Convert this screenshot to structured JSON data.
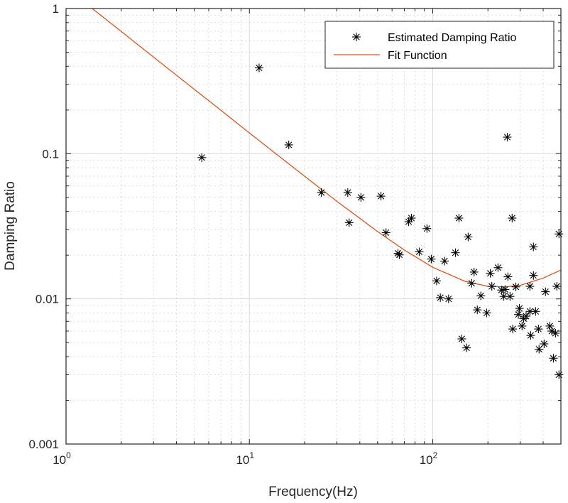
{
  "chart_data": {
    "type": "scatter",
    "xlabel": "Frequency(Hz)",
    "ylabel": "Damping Ratio",
    "xscale": "log",
    "yscale": "log",
    "xlim": [
      1,
      500
    ],
    "ylim": [
      0.001,
      1
    ],
    "xticks": [
      {
        "base": "10",
        "exp": "0",
        "value": 1
      },
      {
        "base": "10",
        "exp": "1",
        "value": 10
      },
      {
        "base": "10",
        "exp": "2",
        "value": 100
      }
    ],
    "yticks": [
      {
        "label": "1",
        "value": 1
      },
      {
        "label": "0.1",
        "value": 0.1
      },
      {
        "label": "0.01",
        "value": 0.01
      },
      {
        "label": "0.001",
        "value": 0.001
      }
    ],
    "grid": true,
    "legend_position": "top-right",
    "series": [
      {
        "name": "Estimated Damping Ratio",
        "marker": "asterisk",
        "color": "#000000",
        "points": [
          [
            5.5,
            0.094
          ],
          [
            11.3,
            0.39
          ],
          [
            16.4,
            0.115
          ],
          [
            24.7,
            0.054
          ],
          [
            34.4,
            0.054
          ],
          [
            40.6,
            0.05
          ],
          [
            52.2,
            0.051
          ],
          [
            35,
            0.0335
          ],
          [
            55.6,
            0.0286
          ],
          [
            64.6,
            0.0206
          ],
          [
            73.9,
            0.034
          ],
          [
            76.5,
            0.036
          ],
          [
            93,
            0.0305
          ],
          [
            139,
            0.036
          ],
          [
            271,
            0.036
          ],
          [
            488,
            0.028
          ],
          [
            156,
            0.0267
          ],
          [
            354,
            0.0228
          ],
          [
            65.8,
            0.0201
          ],
          [
            84.4,
            0.0211
          ],
          [
            98.2,
            0.0188
          ],
          [
            116,
            0.0182
          ],
          [
            133,
            0.0208
          ],
          [
            105,
            0.0133
          ],
          [
            110,
            0.0102
          ],
          [
            122,
            0.01
          ],
          [
            168,
            0.0153
          ],
          [
            163,
            0.0128
          ],
          [
            206,
            0.015
          ],
          [
            227,
            0.0164
          ],
          [
            257,
            0.0142
          ],
          [
            210,
            0.0122
          ],
          [
            183,
            0.0105
          ],
          [
            237,
            0.0115
          ],
          [
            248,
            0.0116
          ],
          [
            244,
            0.0104
          ],
          [
            264,
            0.0104
          ],
          [
            284,
            0.0121
          ],
          [
            339,
            0.0122
          ],
          [
            354,
            0.0145
          ],
          [
            412,
            0.0112
          ],
          [
            475,
            0.0122
          ],
          [
            175,
            0.0084
          ],
          [
            197,
            0.008
          ],
          [
            297,
            0.0086
          ],
          [
            293,
            0.0078
          ],
          [
            313,
            0.0073
          ],
          [
            323,
            0.0076
          ],
          [
            339,
            0.0082
          ],
          [
            364,
            0.0082
          ],
          [
            273,
            0.0062
          ],
          [
            307,
            0.0065
          ],
          [
            342,
            0.0056
          ],
          [
            377,
            0.0062
          ],
          [
            435,
            0.0065
          ],
          [
            446,
            0.006
          ],
          [
            467,
            0.0058
          ],
          [
            144,
            0.0053
          ],
          [
            153,
            0.0046
          ],
          [
            380,
            0.0045
          ],
          [
            405,
            0.0049
          ],
          [
            455,
            0.0039
          ],
          [
            488,
            0.003
          ],
          [
            255,
            0.13
          ]
        ]
      },
      {
        "name": "Fit Function",
        "marker": "line",
        "color": "#D95319",
        "points": [
          [
            1.39,
            1.0
          ],
          [
            2,
            0.695
          ],
          [
            3,
            0.463
          ],
          [
            5,
            0.278
          ],
          [
            7,
            0.199
          ],
          [
            10,
            0.139
          ],
          [
            15,
            0.093
          ],
          [
            20,
            0.07
          ],
          [
            30,
            0.047
          ],
          [
            50,
            0.0291
          ],
          [
            70,
            0.0217
          ],
          [
            100,
            0.0165
          ],
          [
            150,
            0.0132
          ],
          [
            200,
            0.0122
          ],
          [
            250,
            0.0121
          ],
          [
            300,
            0.0124
          ],
          [
            400,
            0.0139
          ],
          [
            500,
            0.0158
          ]
        ]
      }
    ]
  }
}
